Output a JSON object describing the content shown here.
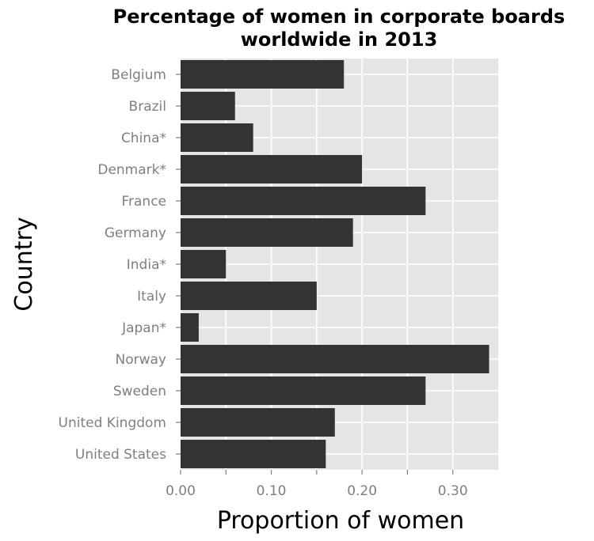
{
  "chart_data": {
    "type": "bar",
    "orientation": "horizontal",
    "title": "Percentage of women in corporate boards worldwide in 2013",
    "title_lines": [
      "Percentage of women in corporate boards",
      "worldwide in 2013"
    ],
    "xlabel": "Proportion of women",
    "ylabel": "Country",
    "categories": [
      "Belgium",
      "Brazil",
      "China*",
      "Denmark*",
      "France",
      "Germany",
      "India*",
      "Italy",
      "Japan*",
      "Norway",
      "Sweden",
      "United Kingdom",
      "United States"
    ],
    "values": [
      0.18,
      0.06,
      0.08,
      0.2,
      0.27,
      0.19,
      0.05,
      0.15,
      0.02,
      0.34,
      0.27,
      0.17,
      0.16
    ],
    "xlim": [
      0,
      0.35
    ],
    "xticks": [
      0.0,
      0.1,
      0.2,
      0.3
    ],
    "xtick_labels": [
      "0.00",
      "0.10",
      "0.20",
      "0.30"
    ],
    "grid": true,
    "bar_color": "#333333",
    "panel_color": "#e5e5e5"
  }
}
